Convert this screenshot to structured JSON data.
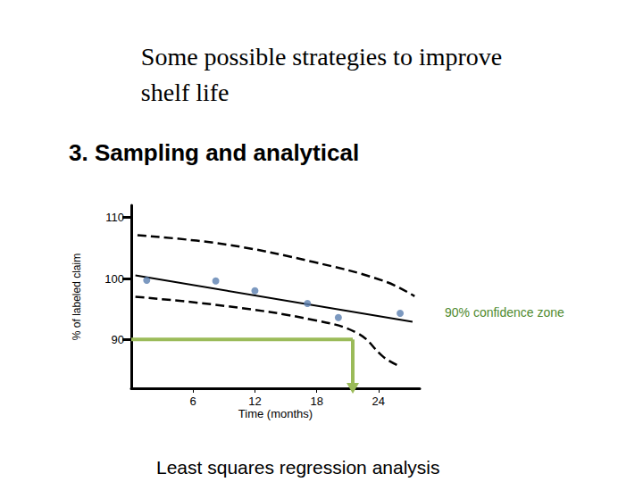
{
  "chart_data": {
    "type": "scatter",
    "title": "Some possible strategies to improve\nshelf life",
    "subtitle": "3. Sampling and analytical",
    "caption": "Least squares regression analysis",
    "x_label": "Time (months)",
    "y_label": "% of labeled claim",
    "xlim": [
      0,
      28
    ],
    "xticks": [
      6,
      12,
      18,
      24
    ],
    "ylim": [
      82,
      112
    ],
    "yticks": [
      90,
      100,
      110
    ],
    "grid": false,
    "x": [
      1.5,
      8.2,
      12.0,
      17.1,
      20.1,
      26.1
    ],
    "values": [
      99.7,
      99.6,
      98.0,
      95.9,
      93.6,
      94.3
    ],
    "color": "#5b7fb0",
    "marker": "circle",
    "fit": {
      "x": [
        0.4,
        27.3
      ],
      "values": [
        100.5,
        92.9
      ],
      "color": "#000000",
      "line_style": "solid"
    },
    "confidence_upper": {
      "x": [
        0.6,
        9.1,
        17.7,
        24.5,
        27.5
      ],
      "values": [
        107.1,
        105.6,
        102.7,
        99.6,
        97.1
      ],
      "color": "#000000",
      "line_style": "dashed"
    },
    "confidence_lower": {
      "x": [
        0.4,
        9.1,
        17.7,
        22.0,
        24.5,
        25.8
      ],
      "values": [
        97.0,
        95.5,
        93.2,
        91.0,
        87.1,
        85.8
      ],
      "color": "#000000",
      "line_style": "dashed"
    },
    "annotation": {
      "text": "90% confidence zone",
      "color": "#4f8a2e"
    },
    "shelf_life": {
      "x": 21.5,
      "y": 90,
      "color": "#9bbb59"
    }
  }
}
